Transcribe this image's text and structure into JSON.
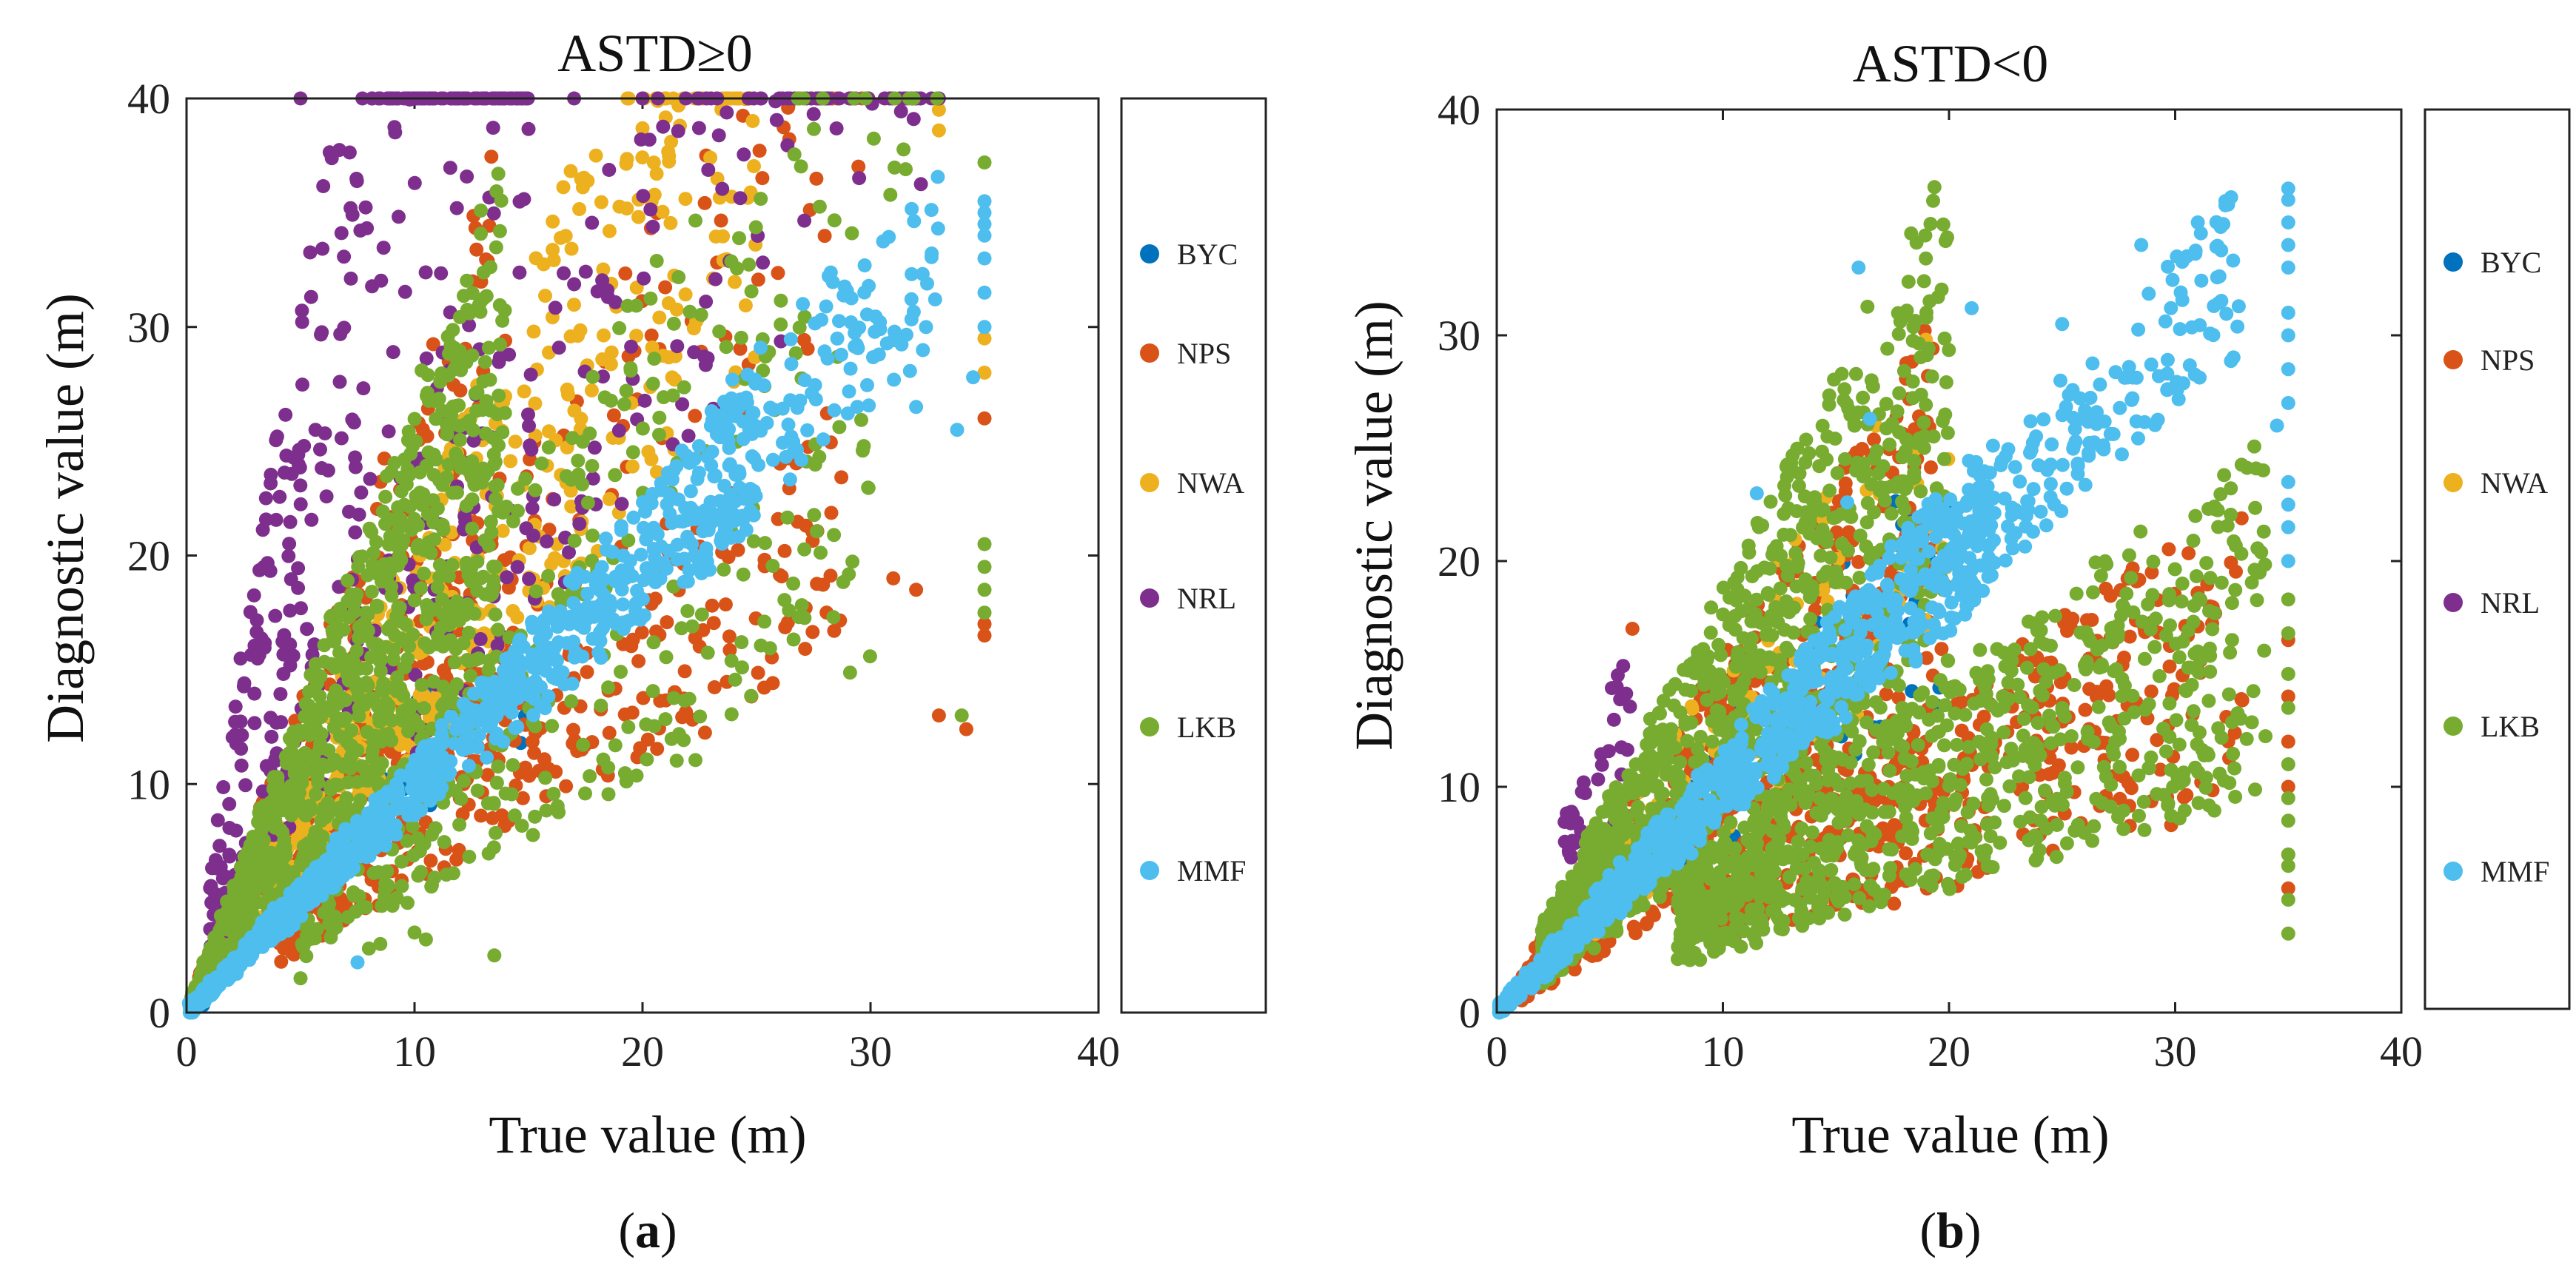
{
  "chart_data": [
    {
      "type": "scatter",
      "title": "ASTD≥0",
      "xlabel": "True value (m)",
      "ylabel": "Diagnostic value (m)",
      "xlim": [
        0,
        40
      ],
      "ylim": [
        0,
        40
      ],
      "xticks": [
        "0",
        "10",
        "20",
        "30",
        "40"
      ],
      "yticks": [
        "0",
        "10",
        "20",
        "30",
        "40"
      ],
      "grid": false,
      "legend_position": "outside-right",
      "caption_letter": "a",
      "series": [
        {
          "name": "BYC",
          "color": "#0072BD",
          "seed": 11,
          "n": 60,
          "clusters": [
            {
              "type": "band",
              "x": [
                0.2,
                15
              ],
              "ratio": [
                0.8,
                1.35
              ],
              "w": 0.8
            }
          ]
        },
        {
          "name": "NPS",
          "color": "#D95319",
          "seed": 23,
          "n": 700,
          "clusters": [
            {
              "type": "band",
              "x": [
                0.2,
                14
              ],
              "ratio": [
                0.9,
                2.8
              ],
              "w": 0.35
            },
            {
              "type": "band",
              "x": [
                4,
                29
              ],
              "ratio": [
                0.55,
                0.95
              ],
              "w": 0.3
            },
            {
              "type": "band",
              "x": [
                4,
                30
              ],
              "ratio": [
                1.0,
                1.7
              ],
              "w": 0.2
            },
            {
              "type": "pts",
              "pts": [
                [
                  34.2,
                  12.4
                ],
                [
                  33,
                  13
                ],
                [
                  31,
                  19
                ],
                [
                  32,
                  18.5
                ],
                [
                  35,
                  16.5
                ],
                [
                  35,
                  17
                ],
                [
                  35,
                  26
                ]
              ],
              "w": 0.15
            }
          ]
        },
        {
          "name": "NWA",
          "color": "#EDB120",
          "seed": 37,
          "n": 420,
          "clusters": [
            {
              "type": "band",
              "x": [
                3,
                25
              ],
              "ratio": [
                1.1,
                2.2
              ],
              "w": 0.6
            },
            {
              "type": "pts",
              "pts": [
                [
                  33,
                  38.6
                ],
                [
                  35,
                  28
                ],
                [
                  35,
                  29.5
                ],
                [
                  33,
                  39.5
                ]
              ],
              "w": 0.4
            }
          ]
        },
        {
          "name": "NRL",
          "color": "#7E2F8E",
          "seed": 53,
          "n": 520,
          "clusters": [
            {
              "type": "band",
              "x": [
                1,
                15
              ],
              "ratio": [
                1.6,
                6.5
              ],
              "w": 0.7
            },
            {
              "type": "band",
              "x": [
                10,
                33
              ],
              "ratio": [
                1.1,
                2.0
              ],
              "w": 0.3
            },
            {
              "type": "pts",
              "pts": [
                [
                  5,
                  40
                ],
                [
                  9,
                  40
                ],
                [
                  17,
                  40
                ],
                [
                  20,
                  40
                ],
                [
                  23,
                  40
                ],
                [
                  26,
                  40
                ],
                [
                  28,
                  40
                ],
                [
                  33,
                  40
                ]
              ],
              "w": 0.0
            }
          ]
        },
        {
          "name": "LKB",
          "color": "#77AC30",
          "seed": 71,
          "n": 1300,
          "clusters": [
            {
              "type": "band",
              "x": [
                0.2,
                14
              ],
              "ratio": [
                1.0,
                2.7
              ],
              "w": 0.7
            },
            {
              "type": "band",
              "x": [
                5,
                30
              ],
              "ratio": [
                0.5,
                0.9
              ],
              "w": 0.15
            },
            {
              "type": "band",
              "x": [
                12,
                33
              ],
              "ratio": [
                1.0,
                1.6
              ],
              "w": 0.1
            },
            {
              "type": "pts",
              "pts": [
                [
                  8,
                  2.8
                ],
                [
                  8.5,
                  3.0
                ],
                [
                  10,
                  3.5
                ],
                [
                  10.5,
                  3.2
                ],
                [
                  13.5,
                  2.5
                ],
                [
                  5,
                  1.5
                ],
                [
                  35,
                  17.5
                ],
                [
                  35,
                  18.5
                ],
                [
                  35,
                  19.5
                ],
                [
                  35,
                  20.5
                ],
                [
                  35,
                  37.2
                ],
                [
                  34,
                  13
                ]
              ],
              "w": 0.0
            }
          ]
        },
        {
          "name": "MMF",
          "color": "#4DBEEE",
          "seed": 97,
          "n": 900,
          "clusters": [
            {
              "type": "band",
              "x": [
                0.1,
                25
              ],
              "ratio": [
                0.85,
                1.12
              ],
              "w": 0.85
            },
            {
              "type": "band",
              "x": [
                23,
                33
              ],
              "ratio": [
                0.88,
                1.15
              ],
              "w": 0.15
            },
            {
              "type": "pts",
              "pts": [
                [
                  35,
                  35.5
                ],
                [
                  35,
                  35
                ],
                [
                  35,
                  34.5
                ],
                [
                  35,
                  34
                ],
                [
                  35,
                  33
                ],
                [
                  35,
                  31.5
                ],
                [
                  35,
                  30
                ],
                [
                  34.5,
                  27.8
                ],
                [
                  33.8,
                  25.5
                ],
                [
                  32,
                  26.5
                ],
                [
                  7.5,
                  2.2
                ]
              ],
              "w": 0.0
            }
          ]
        }
      ]
    },
    {
      "type": "scatter",
      "title": "ASTD<0",
      "xlabel": "True value (m)",
      "ylabel": "Diagnostic value (m)",
      "xlim": [
        0,
        40
      ],
      "ylim": [
        0,
        40
      ],
      "xticks": [
        "0",
        "10",
        "20",
        "30",
        "40"
      ],
      "yticks": [
        "0",
        "10",
        "20",
        "30",
        "40"
      ],
      "grid": false,
      "legend_position": "outside-right",
      "caption_letter": "b",
      "series": [
        {
          "name": "BYC",
          "color": "#0072BD",
          "seed": 13,
          "n": 80,
          "clusters": [
            {
              "type": "band",
              "x": [
                1,
                20
              ],
              "ratio": [
                0.7,
                1.3
              ],
              "w": 1.0
            }
          ]
        },
        {
          "name": "NPS",
          "color": "#D95319",
          "seed": 29,
          "n": 900,
          "clusters": [
            {
              "type": "band",
              "x": [
                1,
                20
              ],
              "ratio": [
                0.6,
                1.6
              ],
              "w": 0.55
            },
            {
              "type": "band",
              "x": [
                10,
                33
              ],
              "ratio": [
                0.28,
                0.7
              ],
              "w": 0.4
            },
            {
              "type": "pts",
              "pts": [
                [
                  35,
                  16.5
                ],
                [
                  35,
                  14
                ],
                [
                  35,
                  12
                ],
                [
                  35,
                  10
                ],
                [
                  35,
                  7
                ],
                [
                  35,
                  5.5
                ],
                [
                  29,
                  17.3
                ],
                [
                  6,
                  17
                ]
              ],
              "w": 0.05
            }
          ]
        },
        {
          "name": "NWA",
          "color": "#EDB120",
          "seed": 41,
          "n": 120,
          "clusters": [
            {
              "type": "band",
              "x": [
                3,
                20
              ],
              "ratio": [
                0.8,
                1.6
              ],
              "w": 1.0
            }
          ]
        },
        {
          "name": "NRL",
          "color": "#7E2F8E",
          "seed": 59,
          "n": 40,
          "clusters": [
            {
              "type": "band",
              "x": [
                3,
                6
              ],
              "ratio": [
                1.6,
                2.9
              ],
              "w": 1.0
            }
          ]
        },
        {
          "name": "LKB",
          "color": "#77AC30",
          "seed": 83,
          "n": 1800,
          "clusters": [
            {
              "type": "band",
              "x": [
                2,
                20
              ],
              "ratio": [
                0.7,
                1.9
              ],
              "w": 0.55
            },
            {
              "type": "band",
              "x": [
                8,
                34
              ],
              "ratio": [
                0.28,
                0.75
              ],
              "w": 0.42
            },
            {
              "type": "pts",
              "pts": [
                [
                  35,
                  18.3
                ],
                [
                  35,
                  16.8
                ],
                [
                  35,
                  15
                ],
                [
                  35,
                  13.5
                ],
                [
                  35,
                  11
                ],
                [
                  35,
                  9.5
                ],
                [
                  35,
                  8.5
                ],
                [
                  35,
                  7
                ],
                [
                  35,
                  6.5
                ],
                [
                  35,
                  5
                ],
                [
                  35,
                  3.5
                ],
                [
                  29,
                  18.5
                ],
                [
                  17,
                  20.5
                ]
              ],
              "w": 0.03
            }
          ]
        },
        {
          "name": "MMF",
          "color": "#4DBEEE",
          "seed": 101,
          "n": 1100,
          "clusters": [
            {
              "type": "band",
              "x": [
                0.1,
                22
              ],
              "ratio": [
                0.85,
                1.18
              ],
              "w": 0.8
            },
            {
              "type": "band",
              "x": [
                20,
                33
              ],
              "ratio": [
                0.88,
                1.12
              ],
              "w": 0.17
            },
            {
              "type": "pts",
              "pts": [
                [
                  35,
                  36.5
                ],
                [
                  35,
                  36
                ],
                [
                  35,
                  35
                ],
                [
                  35,
                  34
                ],
                [
                  35,
                  33
                ],
                [
                  35,
                  31
                ],
                [
                  35,
                  30
                ],
                [
                  35,
                  28.5
                ],
                [
                  35,
                  27
                ],
                [
                  35,
                  23.5
                ],
                [
                  35,
                  22.5
                ],
                [
                  35,
                  21.5
                ],
                [
                  35,
                  20
                ],
                [
                  16,
                  33
                ],
                [
                  31,
                  35
                ],
                [
                  28.5,
                  34
                ],
                [
                  25,
                  30.5
                ],
                [
                  21,
                  31.2
                ],
                [
                  16.5,
                  26.3
                ],
                [
                  15.5,
                  22.6
                ],
                [
                  11.5,
                  23
                ],
                [
                  34.5,
                  26
                ]
              ],
              "w": 0.0
            }
          ]
        }
      ]
    }
  ]
}
